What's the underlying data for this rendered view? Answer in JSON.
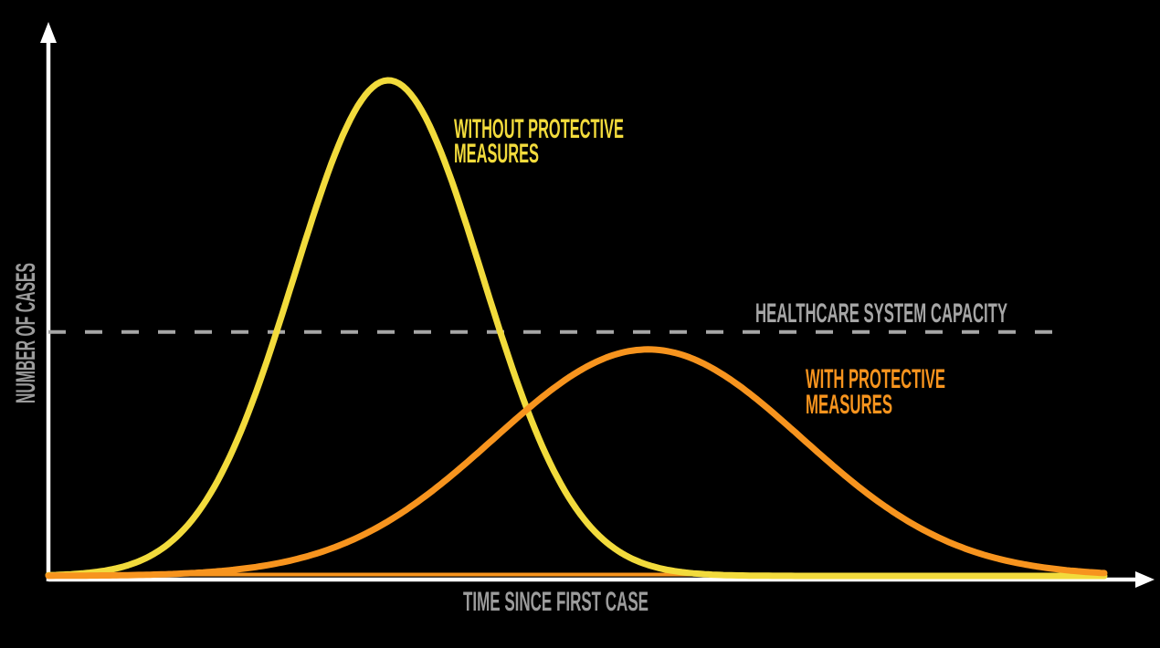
{
  "page": {
    "background_color": "#000000"
  },
  "chart_data": {
    "type": "line",
    "title": "",
    "xlabel": "TIME SINCE FIRST CASE",
    "ylabel": "NUMBER OF CASES",
    "axis_color": "#FFFFFF",
    "text_color": "#9C9C9C",
    "grid": false,
    "legend_position": "inline-annotations",
    "x_axis": {
      "min": 0,
      "max": 1,
      "ticks": [],
      "arrow": true
    },
    "y_axis": {
      "min": 0,
      "max": 1,
      "ticks": [],
      "arrow": true
    },
    "series": [
      {
        "name": "WITHOUT PROTECTIVE MEASURES",
        "label_lines": [
          "WITHOUT PROTECTIVE",
          "MEASURES"
        ],
        "color": "#F2DB3C",
        "curve": "gaussian",
        "peak_x": 0.322,
        "peak_height": 1.0,
        "sigma": 0.089
      },
      {
        "name": "WITH PROTECTIVE MEASURES",
        "label_lines": [
          "WITH PROTECTIVE",
          "MEASURES"
        ],
        "color": "#F7941E",
        "curve": "gaussian",
        "peak_x": 0.568,
        "peak_height": 0.457,
        "sigma": 0.146
      }
    ],
    "reference_line": {
      "label": "HEALTHCARE SYSTEM CAPACITY",
      "value": 0.492,
      "style": "dashed",
      "color": "#A6A6A6"
    }
  }
}
